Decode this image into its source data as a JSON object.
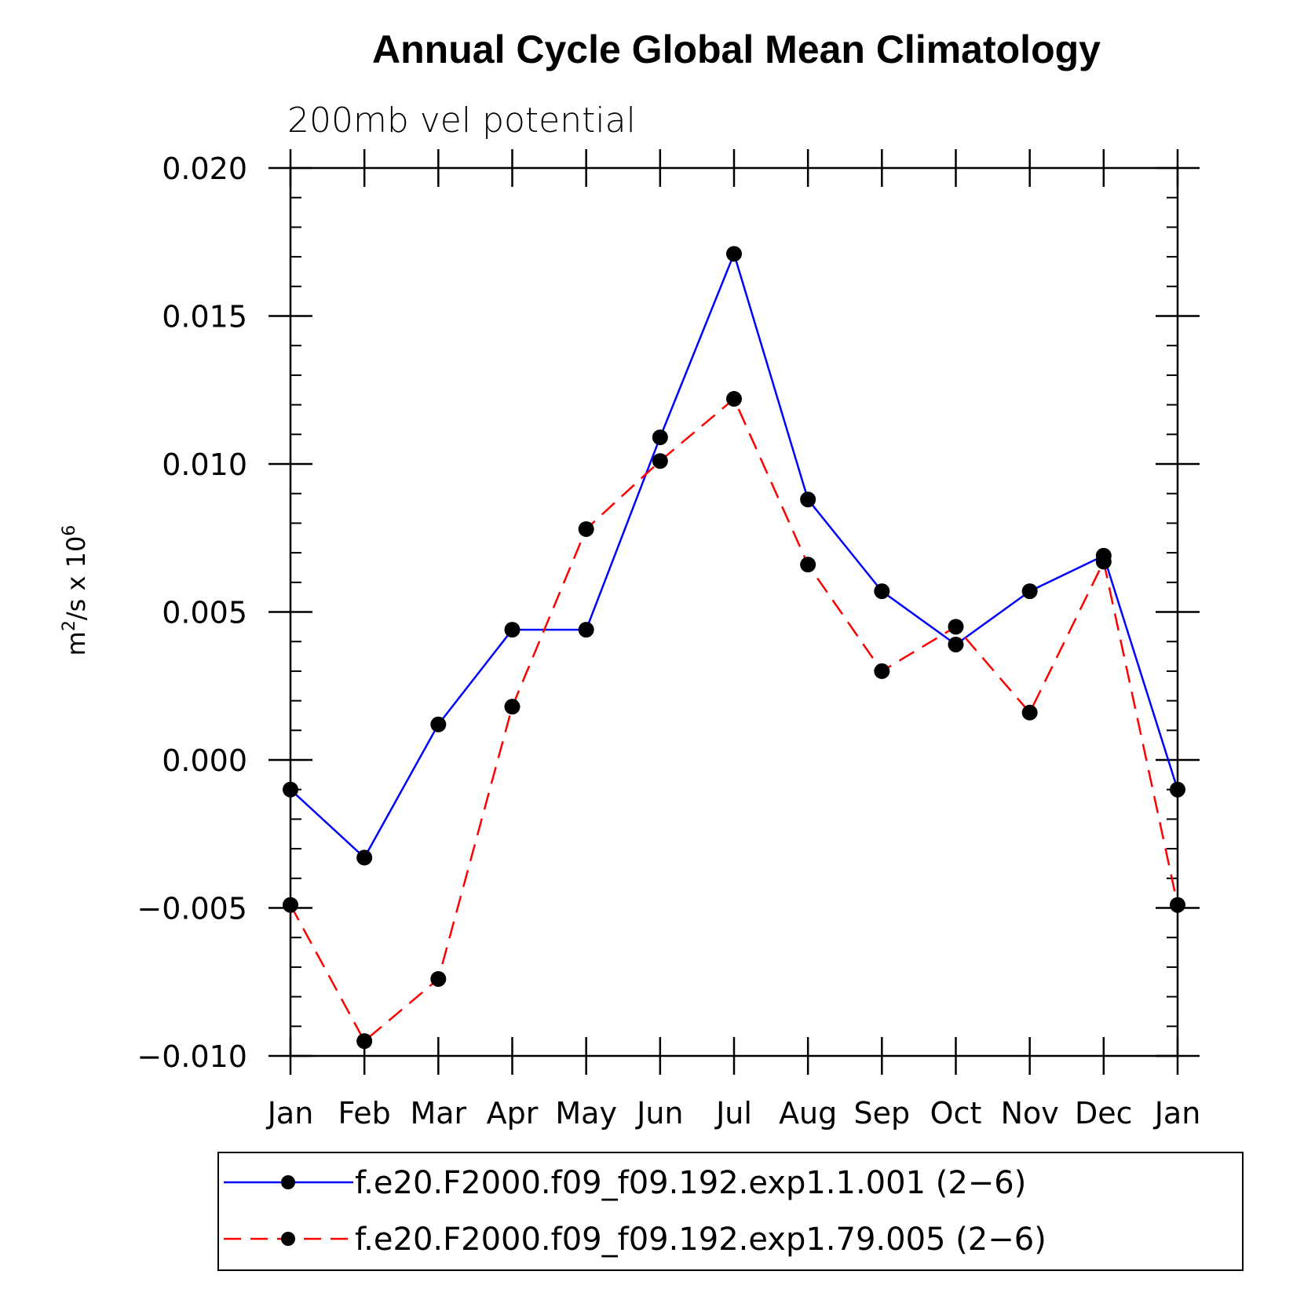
{
  "chart_data": {
    "type": "line",
    "title": "Annual Cycle Global Mean Climatology",
    "subtitle": "200mb vel potential",
    "ylabel": "m²/s x 10⁶",
    "ylabel_base": "m",
    "ylabel_exp1": "2",
    "ylabel_mid": "/s x 10",
    "ylabel_exp2": "6",
    "xlabel": "",
    "categories": [
      "Jan",
      "Feb",
      "Mar",
      "Apr",
      "May",
      "Jun",
      "Jul",
      "Aug",
      "Sep",
      "Oct",
      "Nov",
      "Dec",
      "Jan"
    ],
    "ylim": [
      -0.01,
      0.02
    ],
    "yticks": [
      -0.01,
      -0.005,
      0.0,
      0.005,
      0.01,
      0.015,
      0.02
    ],
    "ytick_labels": [
      "−0.010",
      "−0.005",
      "0.000",
      "0.005",
      "0.010",
      "0.015",
      "0.020"
    ],
    "series": [
      {
        "name": "f.e20.F2000.f09_f09.192.exp1.1.001 (2−6)",
        "color": "#0000ff",
        "dash": "solid",
        "values": [
          -0.001,
          -0.0033,
          0.0012,
          0.0044,
          0.0044,
          0.0109,
          0.0171,
          0.0088,
          0.0057,
          0.0039,
          0.0057,
          0.0069,
          -0.001
        ]
      },
      {
        "name": "f.e20.F2000.f09_f09.192.exp1.79.005 (2−6)",
        "color": "#ff0000",
        "dash": "dashed",
        "values": [
          -0.0049,
          -0.0095,
          -0.0074,
          0.0018,
          0.0078,
          0.0101,
          0.0122,
          0.0066,
          0.003,
          0.0045,
          0.0016,
          0.0067,
          -0.0049
        ]
      }
    ],
    "marker_color": "#000000",
    "legend_position": "bottom"
  }
}
